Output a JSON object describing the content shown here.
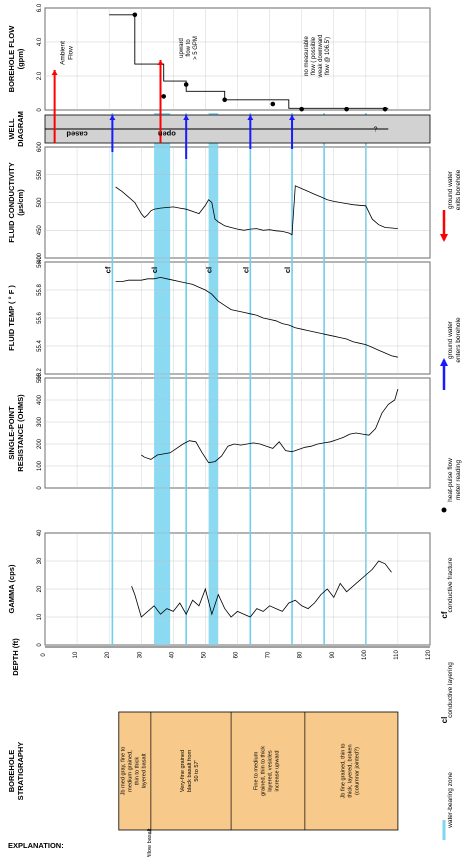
{
  "depth_axis": {
    "title": "DEPTH (ft)",
    "min": 0,
    "max": 120,
    "step": 10
  },
  "panels": [
    {
      "key": "flow",
      "title_lines": [
        "BOREHOLE FLOW",
        "(gpm)"
      ],
      "min": 0,
      "max": 6,
      "ticks": [
        0,
        2.0,
        4.0,
        6.0
      ],
      "tick_labels": [
        "0",
        "2.0",
        "4.0",
        "6.0"
      ]
    },
    {
      "key": "well",
      "title_lines": [
        "WELL",
        "DIAGRAM"
      ]
    },
    {
      "key": "cond",
      "title_lines": [
        "FLUID CONDUCTIVITY",
        "(µs/cm)"
      ],
      "min": 400,
      "max": 600,
      "ticks": [
        400,
        450,
        500,
        550,
        600
      ],
      "tick_labels": [
        "400",
        "450",
        "500",
        "550",
        "600"
      ]
    },
    {
      "key": "temp",
      "title_lines": [
        "FLUID TEMP ( ° F )"
      ],
      "min": 55.2,
      "max": 56.0,
      "ticks": [
        55.2,
        55.4,
        55.6,
        55.8,
        56.0
      ],
      "tick_labels": [
        "55.2",
        "55.4",
        "55.6",
        "55.8",
        "56.0"
      ]
    },
    {
      "key": "res",
      "title_lines": [
        "SINGLE-POINT",
        "RESISTANCE (OHMS)"
      ],
      "min": 0,
      "max": 500,
      "ticks": [
        0,
        100,
        200,
        300,
        400,
        500
      ],
      "tick_labels": [
        "0",
        "100",
        "200",
        "300",
        "400",
        "500"
      ]
    },
    {
      "key": "gamma",
      "title_lines": [
        "GAMMA (cps)"
      ],
      "min": 0,
      "max": 40,
      "ticks": [
        0,
        10,
        20,
        30,
        40
      ],
      "tick_labels": [
        "0",
        "10",
        "20",
        "30",
        "40"
      ]
    }
  ],
  "chart_data": {
    "type": "line",
    "x_axis": "Depth (ft)",
    "water_bearing_zones": [
      [
        34,
        39
      ],
      [
        51,
        54
      ]
    ],
    "fracture_depths": [
      21,
      44,
      64,
      77,
      87,
      100
    ],
    "feature_labels": [
      {
        "text": "cf",
        "depth": 21
      },
      {
        "text": "cl",
        "depth": 35.5
      },
      {
        "text": "cl",
        "depth": 52.5
      },
      {
        "text": "cl",
        "depth": 64
      },
      {
        "text": "cl",
        "depth": 77
      }
    ],
    "series": [
      {
        "name": "Borehole flow",
        "step_x": [
          20,
          28,
          28,
          37,
          37,
          44,
          44,
          56,
          56,
          76,
          76,
          107
        ],
        "step_y": [
          5.6,
          5.6,
          2.7,
          2.7,
          1.7,
          1.7,
          1.1,
          1.1,
          0.6,
          0.6,
          0.1,
          0.1
        ],
        "points_x": [
          28,
          37,
          44,
          56,
          71,
          80,
          94,
          106
        ],
        "points_y": [
          5.6,
          0.8,
          1.5,
          0.6,
          0.35,
          0.05,
          0.05,
          0.05
        ]
      },
      {
        "name": "Fluid conductivity",
        "x": [
          22,
          24,
          26,
          28,
          29,
          30,
          31,
          32,
          33,
          34,
          36,
          38,
          40,
          42,
          44,
          46,
          48,
          50,
          51,
          52,
          53,
          54,
          56,
          58,
          60,
          62,
          64,
          66,
          68,
          70,
          72,
          74,
          76,
          77,
          78,
          80,
          82,
          84,
          86,
          88,
          90,
          92,
          94,
          96,
          98,
          100,
          102,
          104,
          106,
          108,
          110
        ],
        "y": [
          528,
          520,
          510,
          500,
          490,
          480,
          473,
          478,
          485,
          488,
          490,
          491,
          492,
          490,
          488,
          484,
          480,
          495,
          505,
          500,
          470,
          465,
          458,
          455,
          452,
          450,
          452,
          453,
          450,
          451,
          449,
          448,
          445,
          442,
          530,
          525,
          520,
          515,
          510,
          505,
          502,
          500,
          498,
          496,
          495,
          494,
          470,
          460,
          455,
          454,
          453
        ]
      },
      {
        "name": "Fluid temperature",
        "x": [
          22,
          24,
          26,
          28,
          30,
          32,
          34,
          36,
          38,
          40,
          42,
          44,
          46,
          48,
          50,
          52,
          54,
          56,
          58,
          60,
          62,
          64,
          66,
          68,
          70,
          72,
          74,
          76,
          78,
          80,
          82,
          84,
          86,
          88,
          90,
          92,
          94,
          96,
          98,
          100,
          102,
          104,
          106,
          108,
          110
        ],
        "y": [
          55.86,
          55.86,
          55.87,
          55.87,
          55.87,
          55.88,
          55.88,
          55.89,
          55.88,
          55.87,
          55.86,
          55.85,
          55.84,
          55.82,
          55.8,
          55.77,
          55.72,
          55.69,
          55.66,
          55.65,
          55.64,
          55.63,
          55.62,
          55.6,
          55.59,
          55.58,
          55.56,
          55.55,
          55.53,
          55.52,
          55.51,
          55.5,
          55.49,
          55.48,
          55.47,
          55.46,
          55.45,
          55.43,
          55.42,
          55.41,
          55.39,
          55.37,
          55.35,
          55.33,
          55.32
        ]
      },
      {
        "name": "Single-point resistance",
        "x": [
          30,
          31,
          33,
          35,
          37,
          39,
          41,
          43,
          45,
          47,
          49,
          51,
          53,
          55,
          57,
          59,
          61,
          63,
          65,
          67,
          69,
          71,
          73,
          75,
          77,
          79,
          81,
          83,
          85,
          87,
          89,
          91,
          93,
          95,
          97,
          99,
          101,
          103,
          105,
          107,
          109,
          110
        ],
        "y": [
          150,
          140,
          130,
          150,
          155,
          160,
          180,
          200,
          215,
          210,
          160,
          115,
          120,
          145,
          190,
          200,
          195,
          200,
          205,
          200,
          190,
          180,
          210,
          170,
          165,
          175,
          185,
          190,
          200,
          205,
          210,
          220,
          230,
          245,
          250,
          245,
          240,
          270,
          340,
          380,
          400,
          450
        ]
      },
      {
        "name": "Gamma",
        "x": [
          27,
          28,
          30,
          32,
          34,
          36,
          38,
          40,
          42,
          44,
          46,
          48,
          50,
          52,
          54,
          56,
          58,
          60,
          62,
          64,
          66,
          68,
          70,
          72,
          74,
          76,
          78,
          80,
          82,
          84,
          86,
          88,
          90,
          92,
          94,
          96,
          98,
          100,
          102,
          104,
          106,
          108
        ],
        "y": [
          21,
          18,
          10,
          12,
          14,
          11,
          13,
          12,
          15,
          11,
          16,
          14,
          20,
          11,
          18,
          13,
          10,
          12,
          11,
          10,
          13,
          12,
          14,
          13,
          12,
          15,
          16,
          14,
          13,
          15,
          18,
          20,
          17,
          22,
          19,
          21,
          23,
          25,
          27,
          30,
          29,
          26
        ]
      }
    ]
  },
  "annotations": {
    "ambient_flow_lines": [
      "Ambient",
      "Flow"
    ],
    "upward_flow_lines": [
      "upward",
      "flow to",
      "> 5 GPM"
    ],
    "no_flow_lines": [
      "no measurable",
      "flow ( possible",
      "weak downward",
      "flow @ 106.5')"
    ],
    "cased": "cased",
    "open": "open",
    "question": "?"
  },
  "stratigraphy": {
    "header_lines": [
      "BOREHOLE",
      "STRATIGRAPHY"
    ],
    "units": [
      {
        "lines": [
          "Jb med gray, fine to",
          "medium grained,",
          "thin to thick",
          "layered basalt"
        ]
      },
      {
        "lines": [
          "Very-fine grained",
          "black basalt from",
          "50 to 57'"
        ]
      },
      {
        "lines": [
          "Fine to medium",
          "grained, thin to thick",
          "layered, vesicles",
          "increase upward"
        ]
      },
      {
        "lines": [
          "Jb fine grained, thin to",
          "thick, layered, broken",
          "(columnar jointed?)"
        ]
      }
    ],
    "pillow_label": "Pillow basalt"
  },
  "explanation": {
    "title": "EXPLANATION:",
    "items": [
      {
        "symbol": "line",
        "label": "water-bearing zone"
      },
      {
        "symbol": "cl",
        "label": "conductive layering"
      },
      {
        "symbol": "cf",
        "label": "conductive fracture"
      },
      {
        "symbol": "dot",
        "label_lines": [
          "heat-pulse flow",
          "meter reading"
        ]
      },
      {
        "symbol": "blue-arrow",
        "label_lines": [
          "ground water",
          "enters borehole"
        ]
      },
      {
        "symbol": "red-arrow",
        "label_lines": [
          "ground water",
          "exits borehole"
        ]
      }
    ]
  },
  "colors": {
    "water_zone": "#7fd6f0",
    "fracture": "#6dcfee",
    "blue_arrow": "#1a1aff",
    "red_arrow": "#ff0000",
    "stratigraphy_fill": "#f7c98a",
    "well_fill": "#d2d2d2"
  }
}
